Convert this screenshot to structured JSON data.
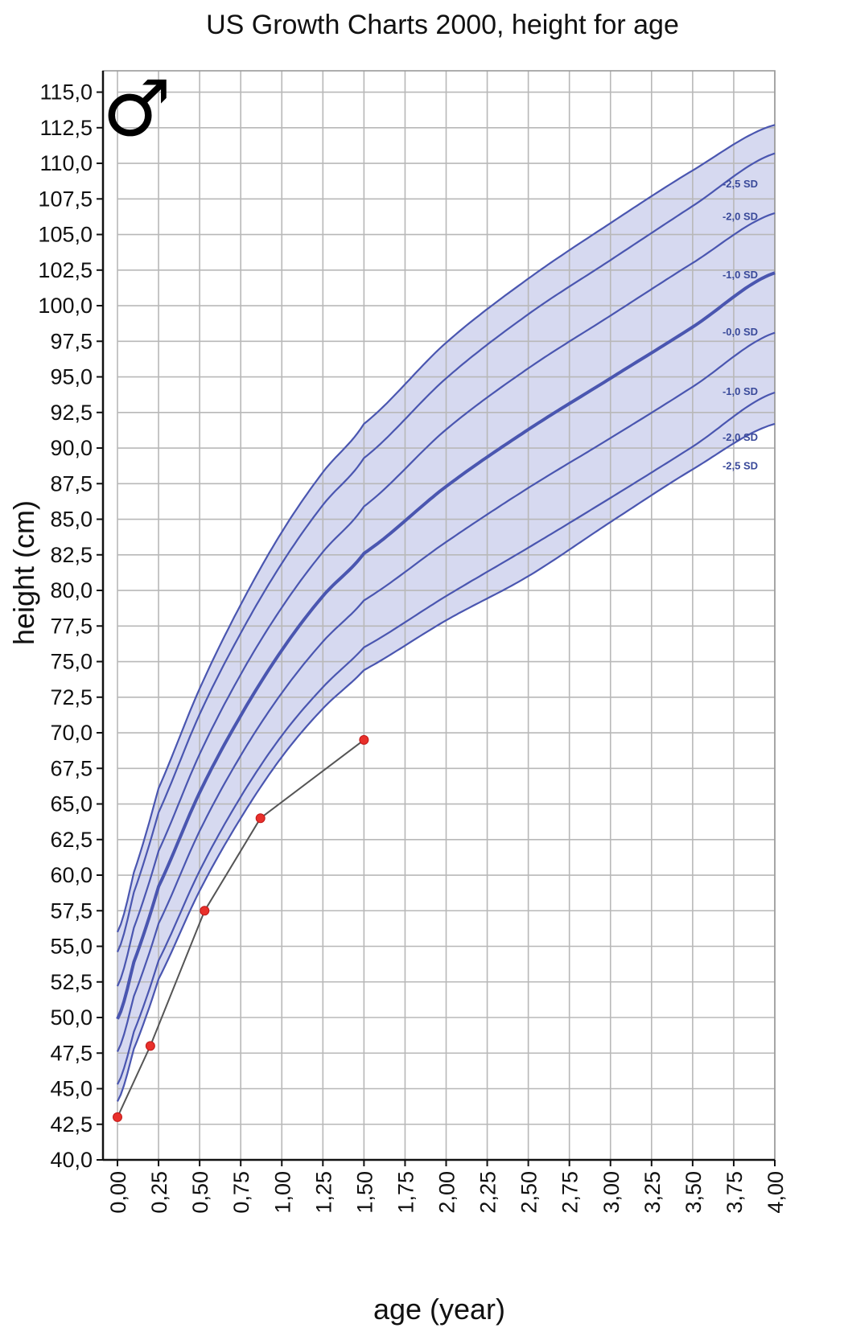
{
  "chart_data": {
    "type": "line",
    "title": "US Growth Charts 2000, height for age",
    "xlabel": "age (year)",
    "ylabel": "height (cm)",
    "xlim": [
      0,
      4
    ],
    "ylim": [
      40,
      116.5
    ],
    "grid": true,
    "x_ticks": [
      "0,00",
      "0,25",
      "0,50",
      "0,75",
      "1,00",
      "1,25",
      "1,50",
      "1,75",
      "2,00",
      "2,25",
      "2,50",
      "2,75",
      "3,00",
      "3,25",
      "3,50",
      "3,75",
      "4,00"
    ],
    "y_ticks": [
      "40,0",
      "42,5",
      "45,0",
      "47,5",
      "50,0",
      "52,5",
      "55,0",
      "57,5",
      "60,0",
      "62,5",
      "65,0",
      "67,5",
      "70,0",
      "72,5",
      "75,0",
      "77,5",
      "80,0",
      "82,5",
      "85,0",
      "87,5",
      "90,0",
      "92,5",
      "95,0",
      "97,5",
      "100,0",
      "102,5",
      "105,0",
      "107,5",
      "110,0",
      "112,5",
      "115,0"
    ],
    "male_symbol": "♂",
    "band_color": "#d6d9f0",
    "line_color": "#4a56b0",
    "reference_curves": [
      {
        "name": "-2,5 SD",
        "label_y": 108.6,
        "points": [
          [
            0,
            56.0
          ],
          [
            0.1,
            60.2
          ],
          [
            0.25,
            66.1
          ],
          [
            0.5,
            73.1
          ],
          [
            0.75,
            79.0
          ],
          [
            1.0,
            84.1
          ],
          [
            1.25,
            88.3
          ],
          [
            1.5,
            91.7
          ],
          [
            2.0,
            97.4
          ],
          [
            2.5,
            101.9
          ],
          [
            3.0,
            105.8
          ],
          [
            3.5,
            109.5
          ],
          [
            4.0,
            112.7
          ]
        ]
      },
      {
        "name": "-2,0 SD",
        "label_y": 106.3,
        "points": [
          [
            0,
            54.6
          ],
          [
            0.1,
            58.8
          ],
          [
            0.25,
            64.4
          ],
          [
            0.5,
            71.3
          ],
          [
            0.75,
            77.0
          ],
          [
            1.0,
            81.9
          ],
          [
            1.25,
            86.0
          ],
          [
            1.5,
            89.3
          ],
          [
            2.0,
            94.9
          ],
          [
            2.5,
            99.4
          ],
          [
            3.0,
            103.2
          ],
          [
            3.5,
            107.0
          ],
          [
            4.0,
            110.7
          ]
        ]
      },
      {
        "name": "-1,0 SD",
        "label_y": 102.2,
        "points": [
          [
            0,
            52.2
          ],
          [
            0.1,
            56.3
          ],
          [
            0.25,
            61.7
          ],
          [
            0.5,
            68.5
          ],
          [
            0.75,
            74.1
          ],
          [
            1.0,
            78.8
          ],
          [
            1.25,
            82.7
          ],
          [
            1.5,
            85.9
          ],
          [
            2.0,
            91.3
          ],
          [
            2.5,
            95.6
          ],
          [
            3.0,
            99.3
          ],
          [
            3.5,
            103.0
          ],
          [
            4.0,
            106.5
          ]
        ]
      },
      {
        "name": "-0,0 SD",
        "label_y": 98.2,
        "points": [
          [
            0,
            49.9
          ],
          [
            0.1,
            53.9
          ],
          [
            0.25,
            59.2
          ],
          [
            0.5,
            65.8
          ],
          [
            0.75,
            71.2
          ],
          [
            1.0,
            75.8
          ],
          [
            1.25,
            79.6
          ],
          [
            1.5,
            82.6
          ],
          [
            2.0,
            87.3
          ],
          [
            2.5,
            91.3
          ],
          [
            3.0,
            94.9
          ],
          [
            3.5,
            98.5
          ],
          [
            4.0,
            102.3
          ]
        ]
      },
      {
        "name": "-1,0 SD",
        "label_y": 94.0,
        "points": [
          [
            0,
            47.6
          ],
          [
            0.1,
            51.5
          ],
          [
            0.25,
            56.6
          ],
          [
            0.5,
            63.1
          ],
          [
            0.75,
            68.4
          ],
          [
            1.0,
            72.8
          ],
          [
            1.25,
            76.4
          ],
          [
            1.5,
            79.3
          ],
          [
            2.0,
            83.4
          ],
          [
            2.5,
            87.2
          ],
          [
            3.0,
            90.7
          ],
          [
            3.5,
            94.3
          ],
          [
            4.0,
            98.1
          ]
        ]
      },
      {
        "name": "-2,0 SD",
        "label_y": 90.8,
        "points": [
          [
            0,
            45.3
          ],
          [
            0.1,
            49.0
          ],
          [
            0.25,
            54.0
          ],
          [
            0.5,
            60.3
          ],
          [
            0.75,
            65.5
          ],
          [
            1.0,
            69.8
          ],
          [
            1.25,
            73.2
          ],
          [
            1.5,
            76.0
          ],
          [
            2.0,
            79.6
          ],
          [
            2.5,
            83.0
          ],
          [
            3.0,
            86.5
          ],
          [
            3.5,
            90.1
          ],
          [
            4.0,
            93.9
          ]
        ]
      },
      {
        "name": "-2,5 SD",
        "label_y": 88.8,
        "points": [
          [
            0,
            44.1
          ],
          [
            0.1,
            47.8
          ],
          [
            0.25,
            52.7
          ],
          [
            0.5,
            58.9
          ],
          [
            0.75,
            64.0
          ],
          [
            1.0,
            68.3
          ],
          [
            1.25,
            71.7
          ],
          [
            1.5,
            74.4
          ],
          [
            2.0,
            77.9
          ],
          [
            2.5,
            81.0
          ],
          [
            3.0,
            84.8
          ],
          [
            3.5,
            88.5
          ],
          [
            4.0,
            91.7
          ]
        ]
      }
    ],
    "band_between": [
      "-2,5 SD (upper)",
      "-2,5 SD (lower)"
    ],
    "patient_series": {
      "color": "#e8302b",
      "points": [
        [
          0.0,
          43.0
        ],
        [
          0.2,
          48.0
        ],
        [
          0.53,
          57.5
        ],
        [
          0.87,
          64.0
        ],
        [
          1.5,
          69.5
        ]
      ]
    }
  }
}
